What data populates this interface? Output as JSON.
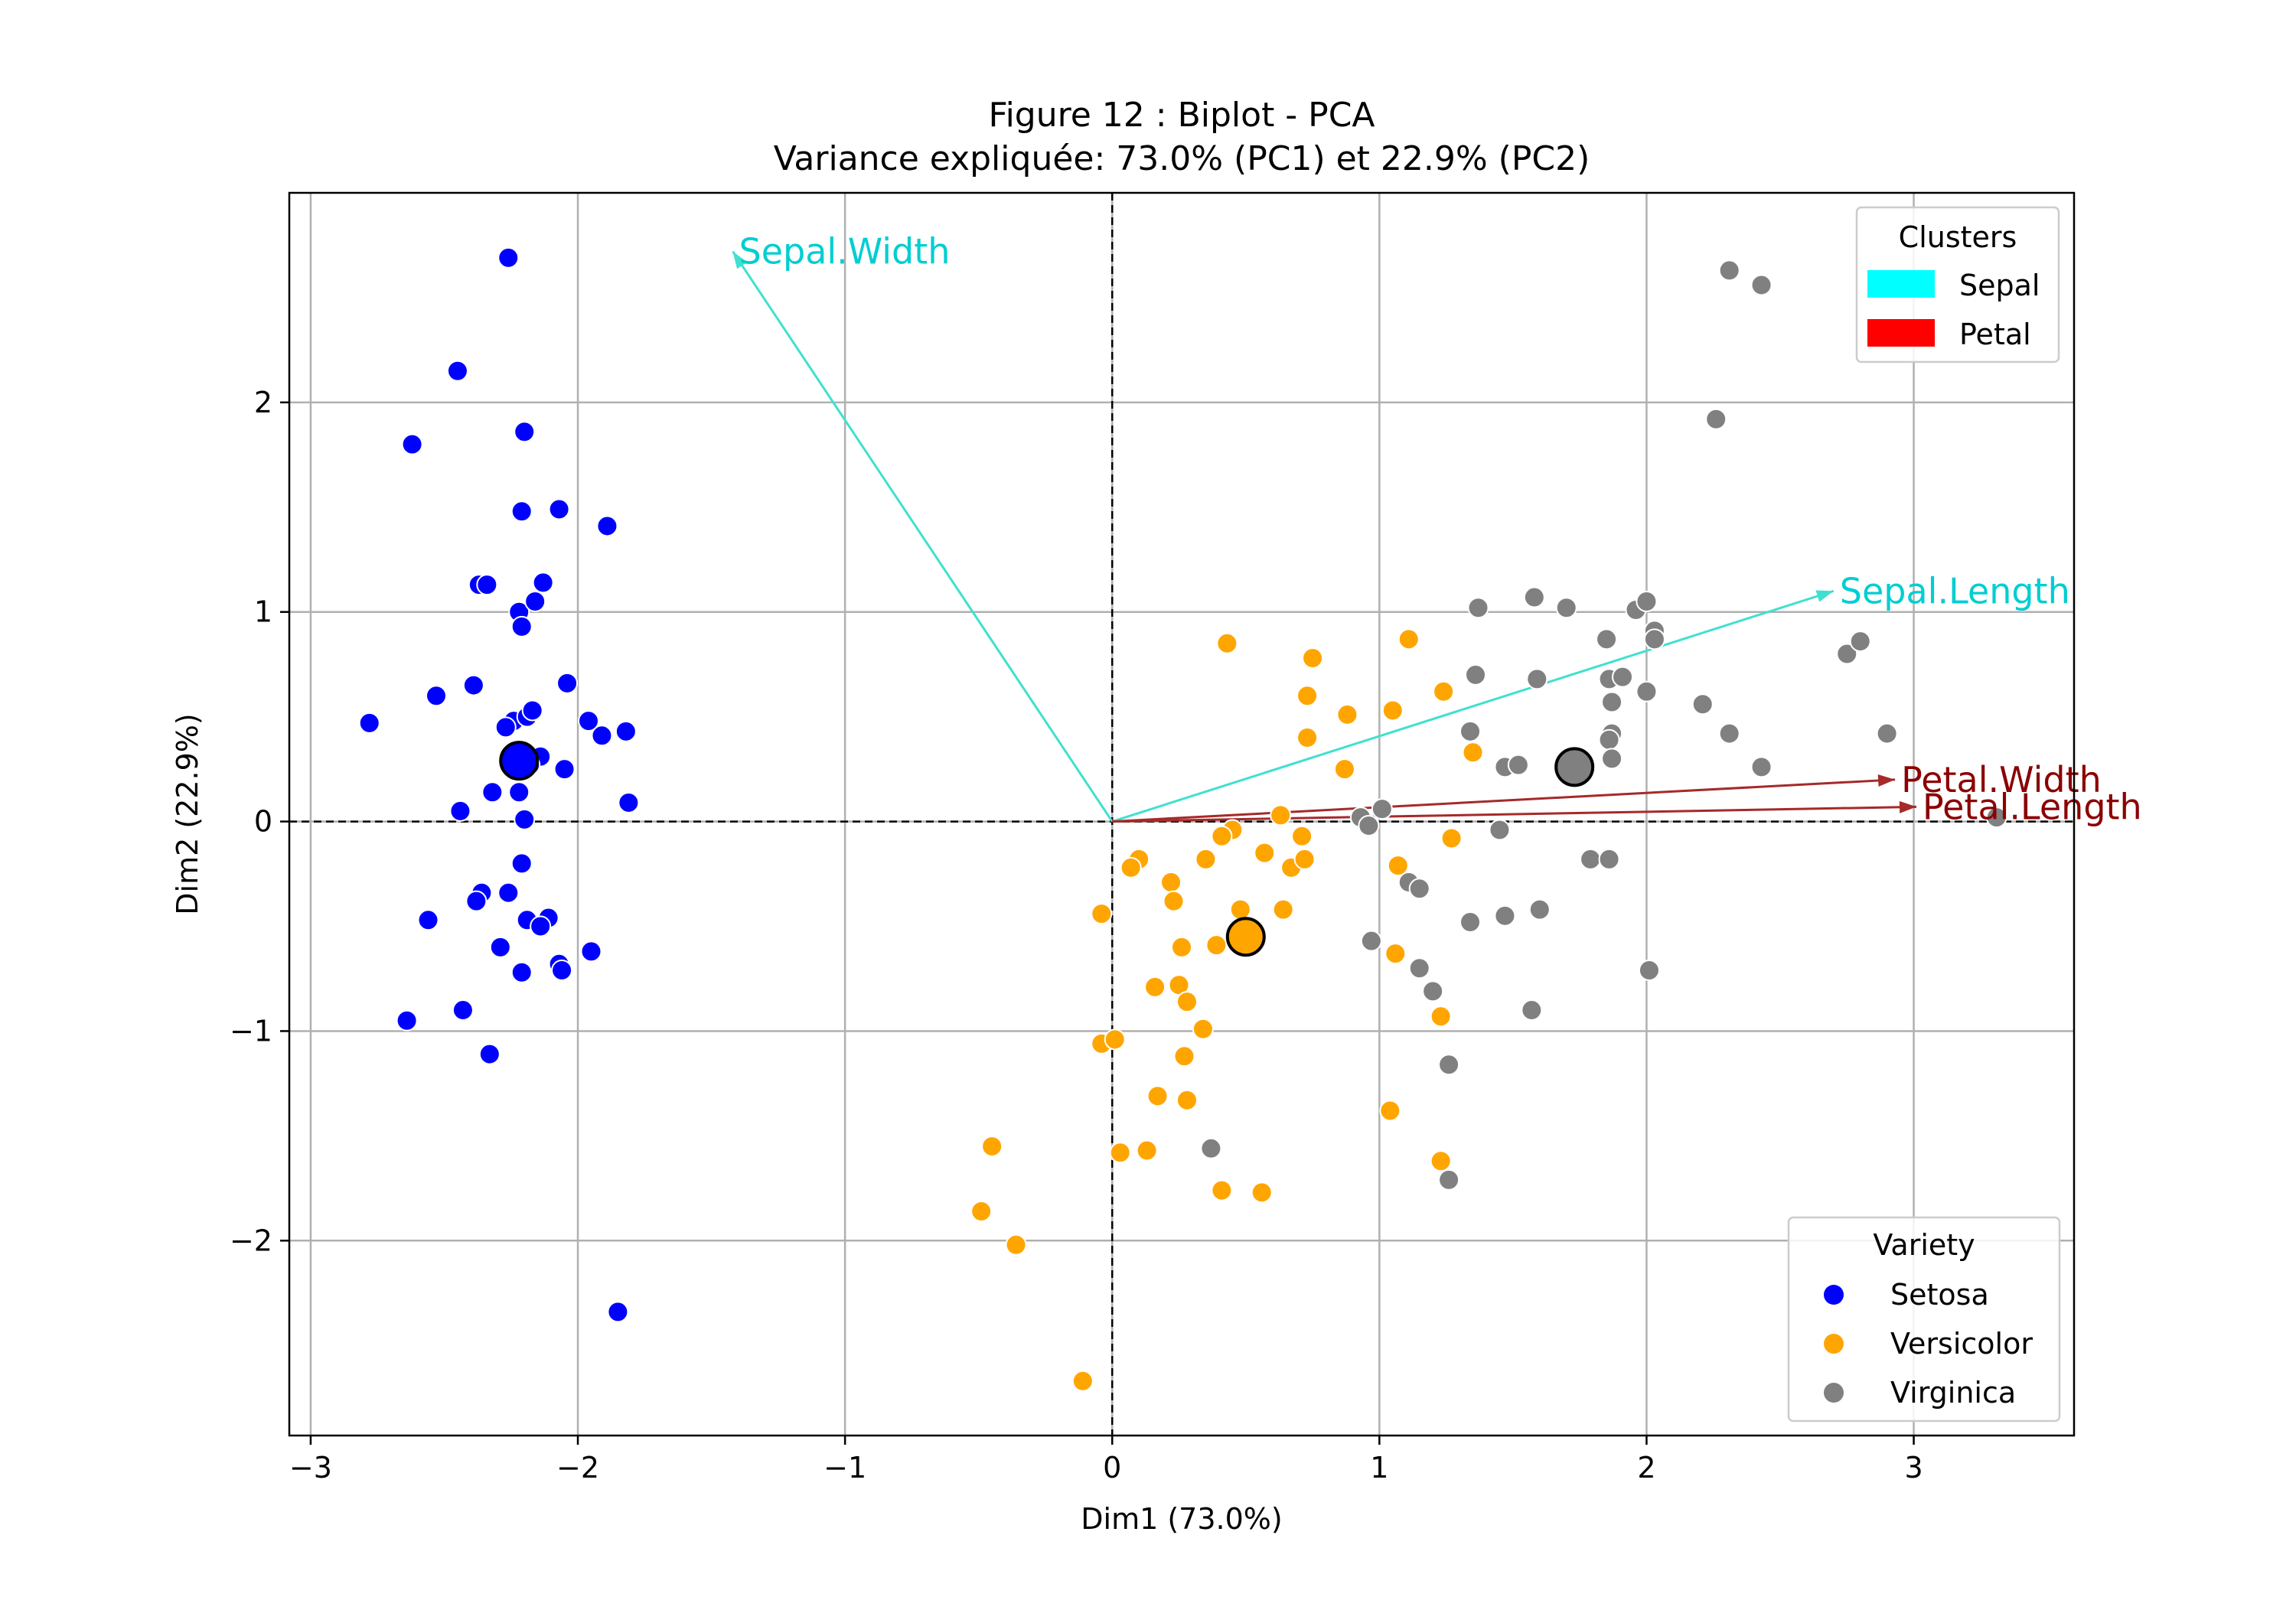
{
  "chart_data": {
    "type": "scatter",
    "title": "Figure 12 : Biplot - PCA",
    "subtitle": "Variance expliquée: 73.0% (PC1) et 22.9% (PC2)",
    "xlabel": "Dim1 (73.0%)",
    "ylabel": "Dim2 (22.9%)",
    "xlim": [
      -3.08,
      3.6
    ],
    "ylim": [
      -2.93,
      3.0
    ],
    "xticks": [
      -3,
      -2,
      -1,
      0,
      1,
      2,
      3
    ],
    "yticks": [
      -2,
      -1,
      0,
      1,
      2
    ],
    "xtick_labels": [
      "−3",
      "−2",
      "−1",
      "0",
      "1",
      "2",
      "3"
    ],
    "ytick_labels": [
      "−2",
      "−1",
      "0",
      "1",
      "2"
    ],
    "grid": true,
    "reference_lines": {
      "x": 0,
      "y": 0,
      "style": "dashed"
    },
    "series": [
      {
        "name": "Setosa",
        "color": "#0000ff",
        "points": [
          [
            -2.26,
            2.69
          ],
          [
            -2.45,
            2.15
          ],
          [
            -2.62,
            1.8
          ],
          [
            -2.2,
            1.86
          ],
          [
            -2.21,
            1.48
          ],
          [
            -2.07,
            1.49
          ],
          [
            -1.89,
            1.41
          ],
          [
            -2.37,
            1.13
          ],
          [
            -2.34,
            1.13
          ],
          [
            -2.13,
            1.14
          ],
          [
            -2.22,
            1.0
          ],
          [
            -2.16,
            1.05
          ],
          [
            -2.21,
            0.93
          ],
          [
            -2.39,
            0.65
          ],
          [
            -2.04,
            0.66
          ],
          [
            -2.53,
            0.6
          ],
          [
            -2.78,
            0.47
          ],
          [
            -2.24,
            0.48
          ],
          [
            -2.19,
            0.5
          ],
          [
            -2.17,
            0.53
          ],
          [
            -2.27,
            0.45
          ],
          [
            -1.96,
            0.48
          ],
          [
            -1.82,
            0.43
          ],
          [
            -1.91,
            0.41
          ],
          [
            -2.14,
            0.31
          ],
          [
            -2.18,
            0.27
          ],
          [
            -2.23,
            0.26
          ],
          [
            -2.05,
            0.25
          ],
          [
            -2.22,
            0.14
          ],
          [
            -2.32,
            0.14
          ],
          [
            -2.44,
            0.05
          ],
          [
            -2.2,
            0.01
          ],
          [
            -1.81,
            0.09
          ],
          [
            -2.21,
            -0.2
          ],
          [
            -2.26,
            -0.34
          ],
          [
            -2.36,
            -0.34
          ],
          [
            -2.38,
            -0.38
          ],
          [
            -2.19,
            -0.47
          ],
          [
            -2.11,
            -0.46
          ],
          [
            -2.14,
            -0.5
          ],
          [
            -2.56,
            -0.47
          ],
          [
            -2.29,
            -0.6
          ],
          [
            -2.07,
            -0.68
          ],
          [
            -2.06,
            -0.71
          ],
          [
            -1.95,
            -0.62
          ],
          [
            -2.21,
            -0.72
          ],
          [
            -2.43,
            -0.9
          ],
          [
            -2.64,
            -0.95
          ],
          [
            -2.33,
            -1.11
          ],
          [
            -1.85,
            -2.34
          ]
        ]
      },
      {
        "name": "Versicolor",
        "color": "#ffa500",
        "points": [
          [
            0.43,
            0.85
          ],
          [
            0.75,
            0.78
          ],
          [
            1.11,
            0.87
          ],
          [
            0.73,
            0.6
          ],
          [
            1.24,
            0.62
          ],
          [
            1.05,
            0.53
          ],
          [
            0.73,
            0.4
          ],
          [
            0.88,
            0.51
          ],
          [
            1.35,
            0.33
          ],
          [
            0.87,
            0.25
          ],
          [
            0.63,
            0.03
          ],
          [
            0.45,
            -0.04
          ],
          [
            0.41,
            -0.07
          ],
          [
            0.71,
            -0.07
          ],
          [
            0.57,
            -0.15
          ],
          [
            0.1,
            -0.18
          ],
          [
            0.07,
            -0.22
          ],
          [
            0.35,
            -0.18
          ],
          [
            0.67,
            -0.22
          ],
          [
            0.72,
            -0.18
          ],
          [
            1.07,
            -0.21
          ],
          [
            1.27,
            -0.08
          ],
          [
            0.22,
            -0.29
          ],
          [
            0.23,
            -0.38
          ],
          [
            0.64,
            -0.42
          ],
          [
            0.48,
            -0.42
          ],
          [
            0.39,
            -0.59
          ],
          [
            -0.04,
            -0.44
          ],
          [
            0.26,
            -0.6
          ],
          [
            0.16,
            -0.79
          ],
          [
            0.25,
            -0.78
          ],
          [
            0.28,
            -0.86
          ],
          [
            1.06,
            -0.63
          ],
          [
            1.23,
            -0.93
          ],
          [
            0.34,
            -0.99
          ],
          [
            -0.04,
            -1.06
          ],
          [
            0.01,
            -1.04
          ],
          [
            0.27,
            -1.12
          ],
          [
            0.17,
            -1.31
          ],
          [
            0.28,
            -1.33
          ],
          [
            1.04,
            -1.38
          ],
          [
            -0.45,
            -1.55
          ],
          [
            0.03,
            -1.58
          ],
          [
            0.13,
            -1.57
          ],
          [
            1.23,
            -1.62
          ],
          [
            -0.49,
            -1.86
          ],
          [
            0.41,
            -1.76
          ],
          [
            0.56,
            -1.77
          ],
          [
            -0.36,
            -2.02
          ],
          [
            -0.11,
            -2.67
          ]
        ]
      },
      {
        "name": "Virginica",
        "color": "#808080",
        "points": [
          [
            2.31,
            2.63
          ],
          [
            2.43,
            2.56
          ],
          [
            2.26,
            1.92
          ],
          [
            1.37,
            1.02
          ],
          [
            1.58,
            1.07
          ],
          [
            1.7,
            1.02
          ],
          [
            1.96,
            1.01
          ],
          [
            2.0,
            1.05
          ],
          [
            2.03,
            0.91
          ],
          [
            2.03,
            0.87
          ],
          [
            1.85,
            0.87
          ],
          [
            2.75,
            0.8
          ],
          [
            2.8,
            0.86
          ],
          [
            1.36,
            0.7
          ],
          [
            1.59,
            0.68
          ],
          [
            1.86,
            0.68
          ],
          [
            1.91,
            0.69
          ],
          [
            1.87,
            0.57
          ],
          [
            2.0,
            0.62
          ],
          [
            2.21,
            0.56
          ],
          [
            1.34,
            0.43
          ],
          [
            1.87,
            0.42
          ],
          [
            1.86,
            0.39
          ],
          [
            2.31,
            0.42
          ],
          [
            2.9,
            0.42
          ],
          [
            1.47,
            0.26
          ],
          [
            1.52,
            0.27
          ],
          [
            1.87,
            0.3
          ],
          [
            2.43,
            0.26
          ],
          [
            0.93,
            0.02
          ],
          [
            0.96,
            -0.02
          ],
          [
            1.01,
            0.06
          ],
          [
            1.45,
            -0.04
          ],
          [
            3.31,
            0.02
          ],
          [
            1.11,
            -0.29
          ],
          [
            1.15,
            -0.32
          ],
          [
            1.79,
            -0.18
          ],
          [
            1.86,
            -0.18
          ],
          [
            1.34,
            -0.48
          ],
          [
            1.47,
            -0.45
          ],
          [
            1.6,
            -0.42
          ],
          [
            0.97,
            -0.57
          ],
          [
            1.15,
            -0.7
          ],
          [
            1.2,
            -0.81
          ],
          [
            1.57,
            -0.9
          ],
          [
            2.01,
            -0.71
          ],
          [
            1.26,
            -1.16
          ],
          [
            0.37,
            -1.56
          ],
          [
            1.26,
            -1.71
          ]
        ]
      }
    ],
    "centroids": [
      {
        "name": "Setosa",
        "color": "#0000ff",
        "x": -2.22,
        "y": 0.29
      },
      {
        "name": "Versicolor",
        "color": "#ffa500",
        "x": 0.5,
        "y": -0.55
      },
      {
        "name": "Virginica",
        "color": "#808080",
        "x": 1.73,
        "y": 0.26
      }
    ],
    "loadings": [
      {
        "name": "Sepal.Width",
        "x": -1.42,
        "y": 2.72,
        "color": "#40e0d0",
        "label_color": "#00ced1",
        "cluster": "Sepal"
      },
      {
        "name": "Sepal.Length",
        "x": 2.7,
        "y": 1.1,
        "color": "#40e0d0",
        "label_color": "#00ced1",
        "cluster": "Sepal"
      },
      {
        "name": "Petal.Width",
        "x": 2.93,
        "y": 0.2,
        "color": "#a52a2a",
        "label_color": "#8b0000",
        "cluster": "Petal"
      },
      {
        "name": "Petal.Length",
        "x": 3.01,
        "y": 0.07,
        "color": "#a52a2a",
        "label_color": "#8b0000",
        "cluster": "Petal"
      }
    ],
    "legend_clusters": {
      "title": "Clusters",
      "placement": "top-right",
      "items": [
        {
          "label": "Sepal",
          "color": "#00ffff"
        },
        {
          "label": "Petal",
          "color": "#ff0000"
        }
      ]
    },
    "legend_variety": {
      "title": "Variety",
      "placement": "bottom-right",
      "items": [
        {
          "label": "Setosa",
          "color": "#0000ff"
        },
        {
          "label": "Versicolor",
          "color": "#ffa500"
        },
        {
          "label": "Virginica",
          "color": "#808080"
        }
      ]
    }
  }
}
